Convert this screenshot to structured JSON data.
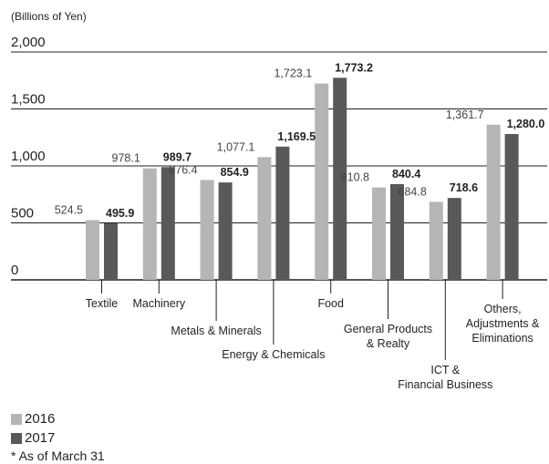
{
  "chart_data": {
    "type": "bar",
    "unit_label": "(Billions of Yen)",
    "ylim": [
      0,
      2000
    ],
    "yticks": [
      "0",
      "500",
      "1,000",
      "1,500",
      "2,000"
    ],
    "ytick_values": [
      0,
      500,
      1000,
      1500,
      2000
    ],
    "categories": [
      "Textile",
      "Machinery",
      "Metals & Minerals",
      "Energy & Chemicals",
      "Food",
      "General Products & Realty",
      "ICT & Financial Business",
      "Others, Adjustments & Eliminations"
    ],
    "category_lines": [
      [
        "Textile"
      ],
      [
        "Machinery"
      ],
      [
        "Metals & Minerals"
      ],
      [
        "Energy & Chemicals"
      ],
      [
        "Food"
      ],
      [
        "General Products",
        "& Realty"
      ],
      [
        "ICT &",
        "Financial Business"
      ],
      [
        "Others,",
        "Adjustments &",
        "Eliminations"
      ]
    ],
    "series": [
      {
        "name": "2016",
        "color": "#b5b5b5",
        "values": [
          524.5,
          978.1,
          876.4,
          1077.1,
          1723.1,
          810.8,
          684.8,
          1361.7
        ],
        "labels": [
          "524.5",
          "978.1",
          "876.4",
          "1,077.1",
          "1,723.1",
          "810.8",
          "684.8",
          "1,361.7"
        ]
      },
      {
        "name": "2017",
        "color": "#595959",
        "values": [
          495.9,
          989.7,
          854.9,
          1169.5,
          1773.2,
          840.4,
          718.6,
          1280.0
        ],
        "labels": [
          "495.9",
          "989.7",
          "854.9",
          "1,169.5",
          "1,773.2",
          "840.4",
          "718.6",
          "1,280.0"
        ]
      }
    ],
    "grid": true
  },
  "legend": {
    "items": [
      {
        "label": "2016",
        "color": "#b5b5b5"
      },
      {
        "label": "2017",
        "color": "#595959"
      }
    ]
  },
  "note": "* As of March 31"
}
